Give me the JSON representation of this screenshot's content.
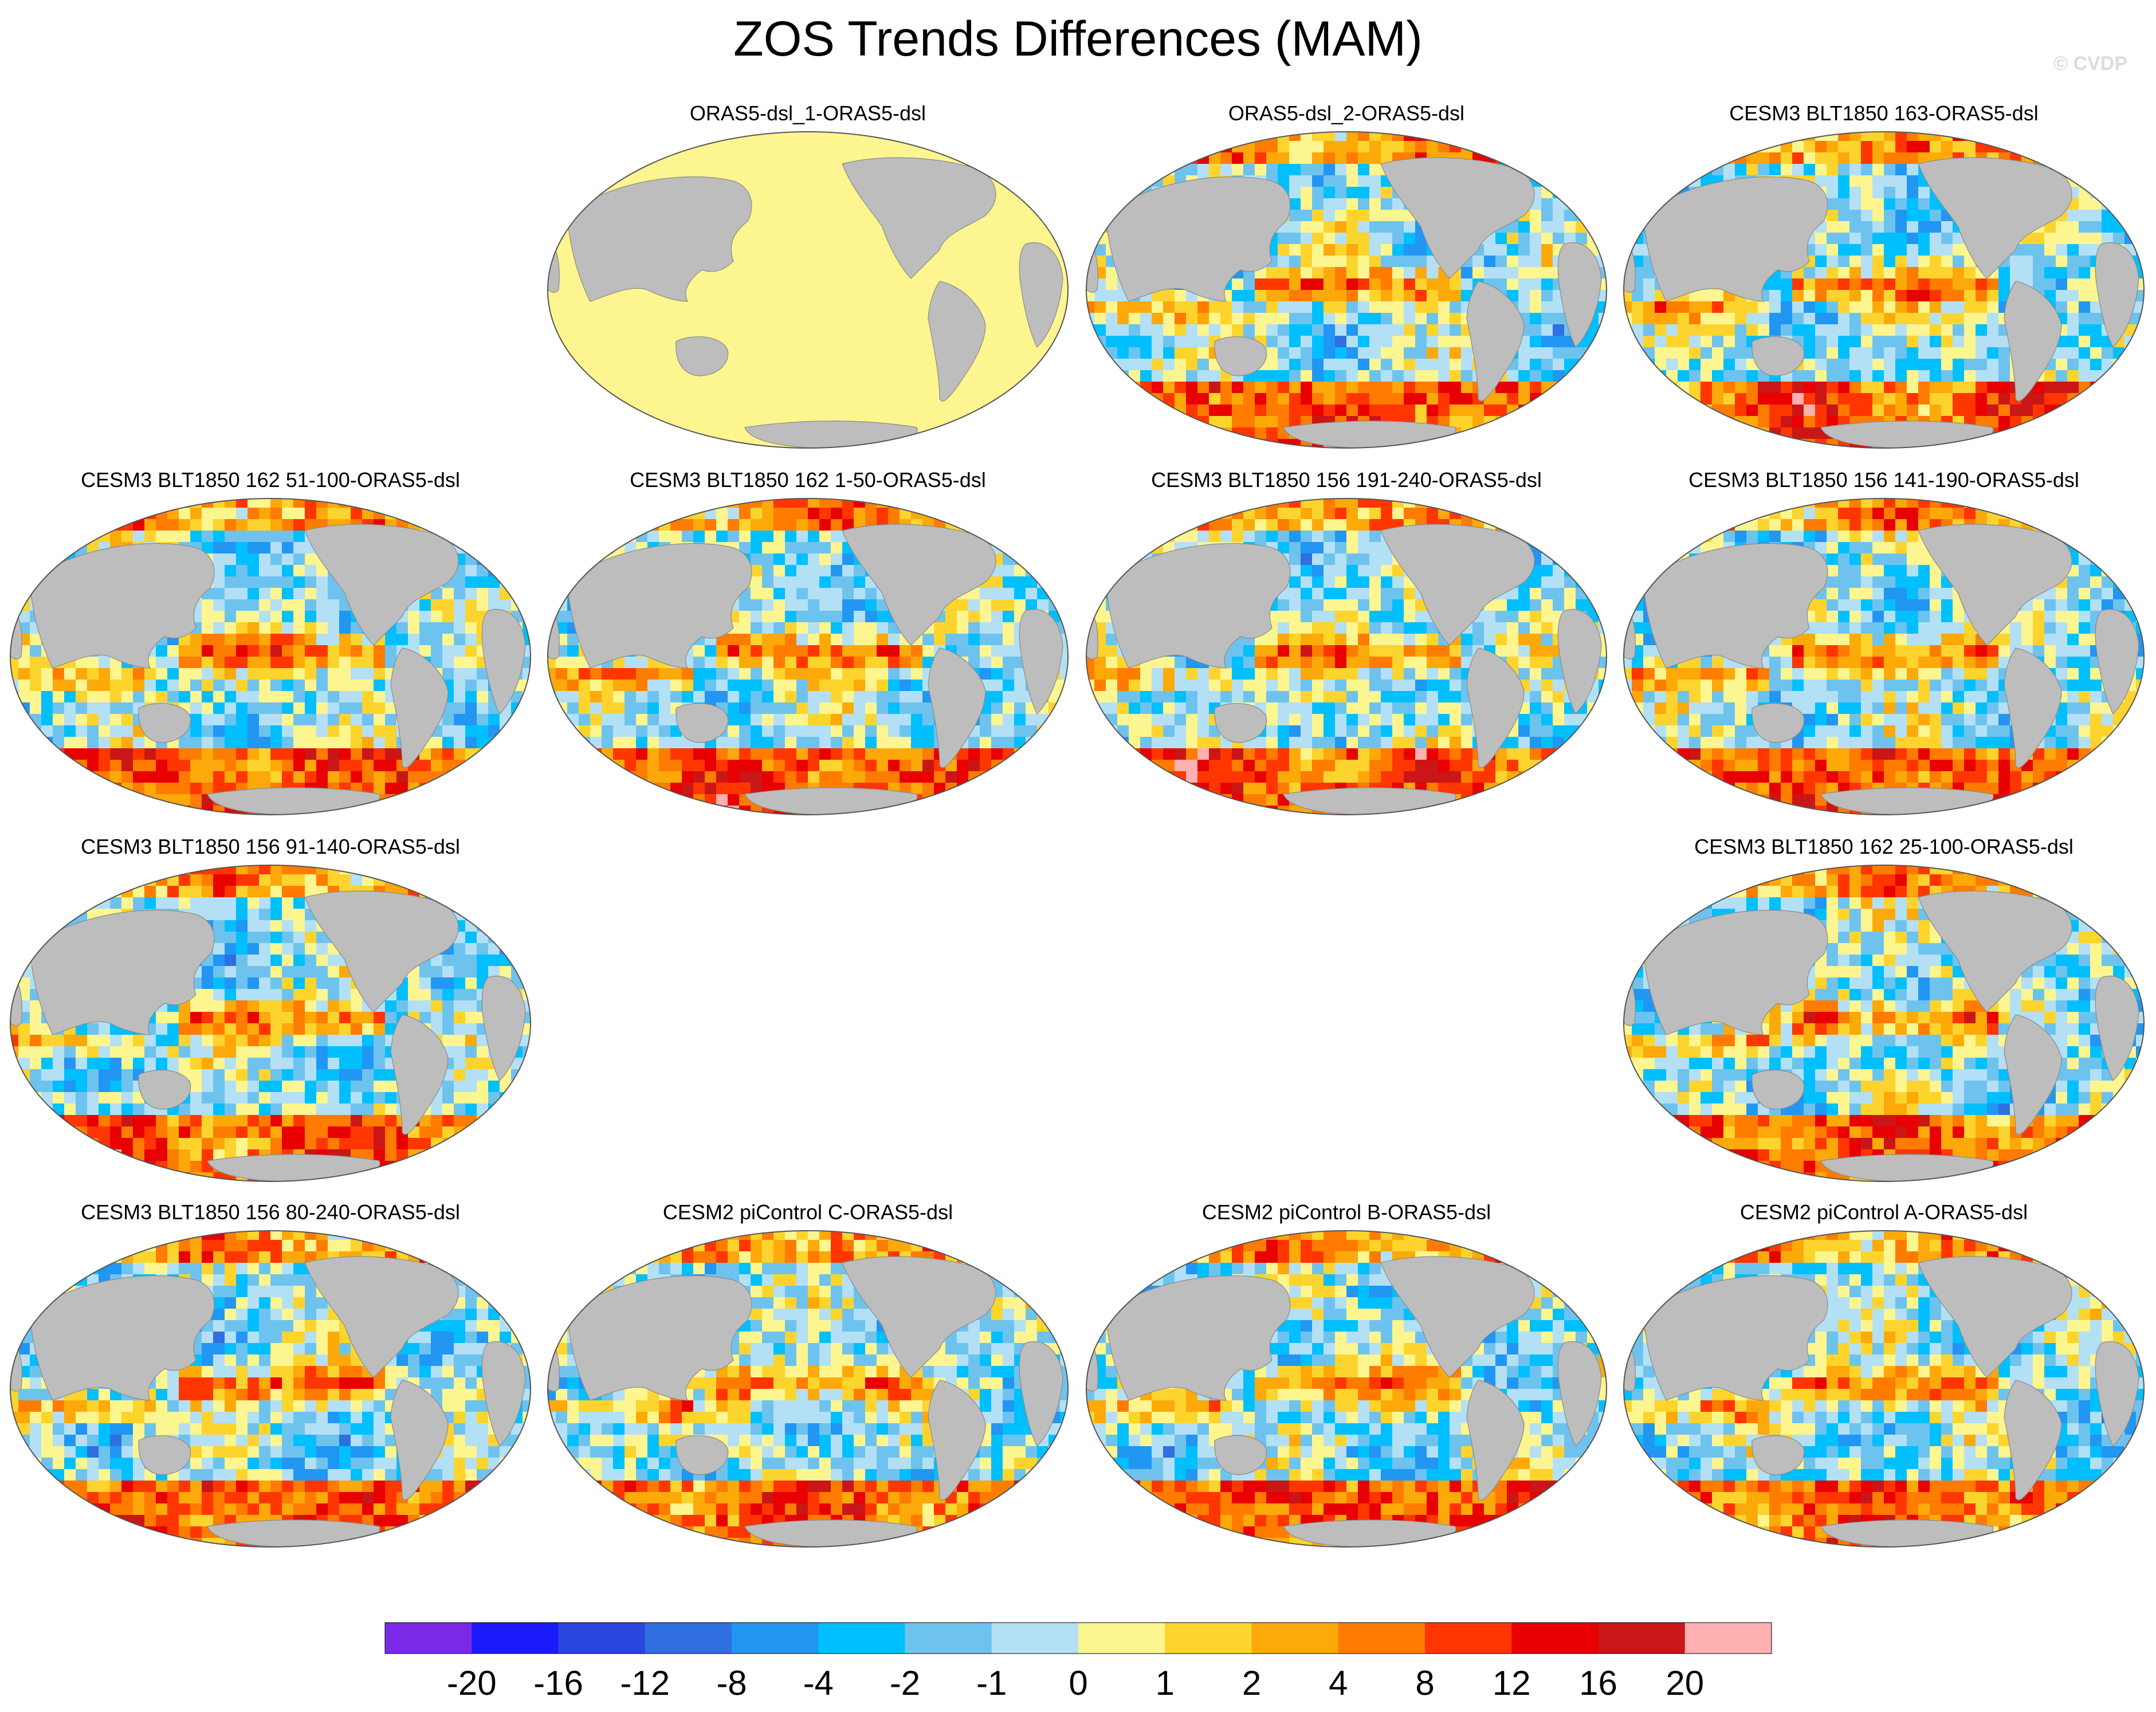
{
  "title": "ZOS Trends Differences (MAM)",
  "watermark": "© CVDP",
  "colors": {
    "land": "#bdbdbd",
    "zero_band": "#fdf58f",
    "palette": [
      "#7a2ae6",
      "#1a1afa",
      "#2b45df",
      "#2f6fe0",
      "#2196f3",
      "#00bfff",
      "#6ec3ee",
      "#b3e0f5",
      "#fdf58f",
      "#fdd42e",
      "#fda90a",
      "#ff7c00",
      "#ff3600",
      "#e80000",
      "#ca1616",
      "#ffb0b0"
    ]
  },
  "chart_data": {
    "type": "heatmap",
    "title": "ZOS Trends Differences (MAM)",
    "projection": "Robinson (Pacific centered)",
    "colorbar": {
      "boundaries": [
        "-20",
        "-16",
        "-12",
        "-8",
        "-4",
        "-2",
        "-1",
        "0",
        "1",
        "2",
        "4",
        "8",
        "12",
        "16",
        "20"
      ],
      "n_bins": 16
    },
    "panels": [
      {
        "label": "ORAS5-dsl_1-ORAS5-dsl",
        "pattern": "zero"
      },
      {
        "label": "ORAS5-dsl_2-ORAS5-dsl",
        "pattern": "field"
      },
      {
        "label": "CESM3 BLT1850 163-ORAS5-dsl",
        "pattern": "field"
      },
      {
        "label": "CESM3 BLT1850 162 51-100-ORAS5-dsl",
        "pattern": "field"
      },
      {
        "label": "CESM3 BLT1850 162 1-50-ORAS5-dsl",
        "pattern": "field"
      },
      {
        "label": "CESM3 BLT1850 156 191-240-ORAS5-dsl",
        "pattern": "field"
      },
      {
        "label": "CESM3 BLT1850 156 141-190-ORAS5-dsl",
        "pattern": "field"
      },
      {
        "label": "CESM3 BLT1850 156 91-140-ORAS5-dsl",
        "pattern": "field"
      },
      {
        "label": "CESM3 BLT1850 162 25-100-ORAS5-dsl",
        "pattern": "field"
      },
      {
        "label": "CESM3 BLT1850 156 80-240-ORAS5-dsl",
        "pattern": "field"
      },
      {
        "label": "CESM2 piControl C-ORAS5-dsl",
        "pattern": "field"
      },
      {
        "label": "CESM2 piControl B-ORAS5-dsl",
        "pattern": "field"
      },
      {
        "label": "CESM2 piControl A-ORAS5-dsl",
        "pattern": "field"
      }
    ]
  }
}
